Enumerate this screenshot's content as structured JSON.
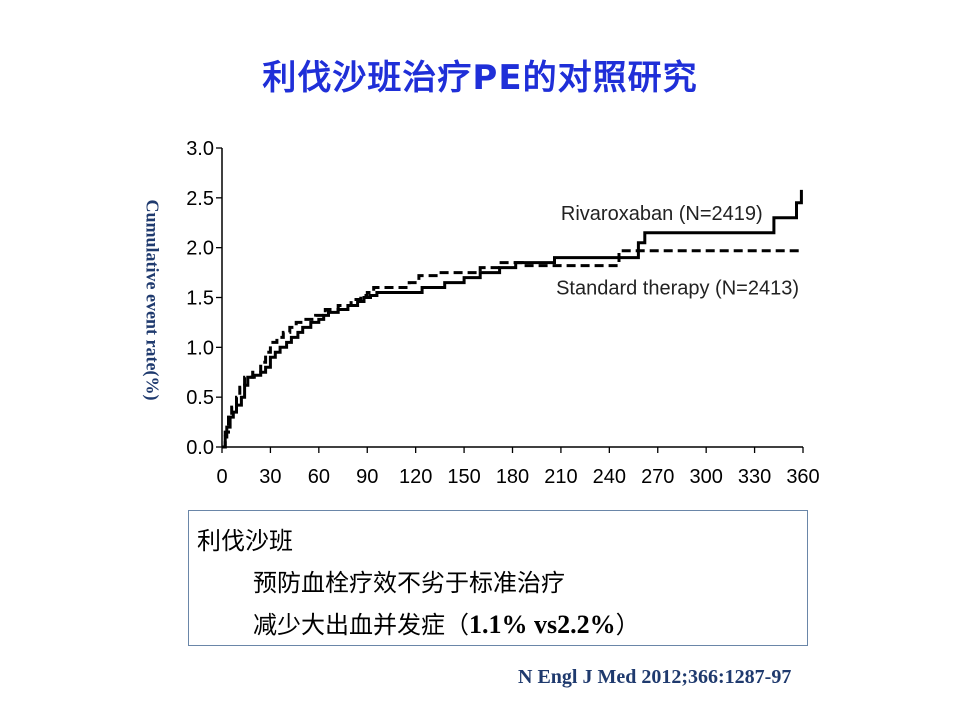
{
  "slide": {
    "title": "利伐沙班治疗PE的对照研究",
    "citation": "N Engl J Med 2012;366:1287-97"
  },
  "summary": {
    "line1": "利伐沙班",
    "line2": "预防血栓疗效不劣于标准治疗",
    "line3_prefix": "减少大出血并发症（",
    "line3_value": "1.1% vs2.2%",
    "line3_suffix": "）"
  },
  "chart_data": {
    "type": "line",
    "title": "",
    "xlabel": "",
    "ylabel": "Cumulative event rate(%)",
    "xlim": [
      0,
      360
    ],
    "ylim": [
      0,
      3.0
    ],
    "xticks": [
      0,
      30,
      60,
      90,
      120,
      150,
      180,
      210,
      240,
      270,
      300,
      330,
      360
    ],
    "yticks": [
      "0.0",
      "0.5",
      "1.0",
      "1.5",
      "2.0",
      "2.5",
      "3.0"
    ],
    "grid": false,
    "series": [
      {
        "name": "Rivaroxaban (N=2419)",
        "style": "solid",
        "color": "#000000",
        "points": [
          [
            0,
            0
          ],
          [
            2,
            0.1
          ],
          [
            3,
            0.2
          ],
          [
            5,
            0.3
          ],
          [
            7,
            0.35
          ],
          [
            9,
            0.42
          ],
          [
            12,
            0.5
          ],
          [
            14,
            0.62
          ],
          [
            16,
            0.7
          ],
          [
            20,
            0.72
          ],
          [
            24,
            0.75
          ],
          [
            27,
            0.8
          ],
          [
            30,
            0.9
          ],
          [
            33,
            0.95
          ],
          [
            36,
            1.0
          ],
          [
            40,
            1.05
          ],
          [
            43,
            1.1
          ],
          [
            47,
            1.15
          ],
          [
            50,
            1.2
          ],
          [
            55,
            1.25
          ],
          [
            60,
            1.28
          ],
          [
            63,
            1.32
          ],
          [
            66,
            1.35
          ],
          [
            72,
            1.38
          ],
          [
            78,
            1.42
          ],
          [
            84,
            1.46
          ],
          [
            88,
            1.5
          ],
          [
            92,
            1.52
          ],
          [
            96,
            1.55
          ],
          [
            110,
            1.55
          ],
          [
            124,
            1.6
          ],
          [
            138,
            1.65
          ],
          [
            150,
            1.7
          ],
          [
            160,
            1.75
          ],
          [
            172,
            1.8
          ],
          [
            182,
            1.85
          ],
          [
            206,
            1.9
          ],
          [
            258,
            2.05
          ],
          [
            262,
            2.15
          ],
          [
            340,
            2.15
          ],
          [
            342,
            2.3
          ],
          [
            355,
            2.3
          ],
          [
            356,
            2.45
          ],
          [
            358,
            2.45
          ],
          [
            359,
            2.58
          ]
        ]
      },
      {
        "name": "Standard therapy (N=2413)",
        "style": "dashed",
        "color": "#000000",
        "points": [
          [
            0,
            0
          ],
          [
            2,
            0.15
          ],
          [
            4,
            0.3
          ],
          [
            6,
            0.4
          ],
          [
            9,
            0.5
          ],
          [
            11,
            0.6
          ],
          [
            14,
            0.7
          ],
          [
            19,
            0.75
          ],
          [
            24,
            0.85
          ],
          [
            27,
            0.95
          ],
          [
            30,
            1.05
          ],
          [
            34,
            1.1
          ],
          [
            38,
            1.15
          ],
          [
            42,
            1.2
          ],
          [
            46,
            1.25
          ],
          [
            52,
            1.28
          ],
          [
            58,
            1.32
          ],
          [
            64,
            1.38
          ],
          [
            72,
            1.42
          ],
          [
            80,
            1.48
          ],
          [
            86,
            1.52
          ],
          [
            90,
            1.55
          ],
          [
            94,
            1.6
          ],
          [
            110,
            1.6
          ],
          [
            116,
            1.65
          ],
          [
            122,
            1.72
          ],
          [
            134,
            1.75
          ],
          [
            144,
            1.75
          ],
          [
            160,
            1.8
          ],
          [
            172,
            1.85
          ],
          [
            180,
            1.85
          ],
          [
            186,
            1.82
          ],
          [
            200,
            1.82
          ],
          [
            244,
            1.82
          ],
          [
            246,
            1.97
          ],
          [
            360,
            1.97
          ]
        ]
      }
    ],
    "annotations": [
      {
        "text": "Rivaroxaban (N=2419)",
        "x": 210,
        "y": 2.35
      },
      {
        "text": "Standard therapy (N=2413)",
        "x": 207,
        "y": 1.6
      }
    ]
  }
}
